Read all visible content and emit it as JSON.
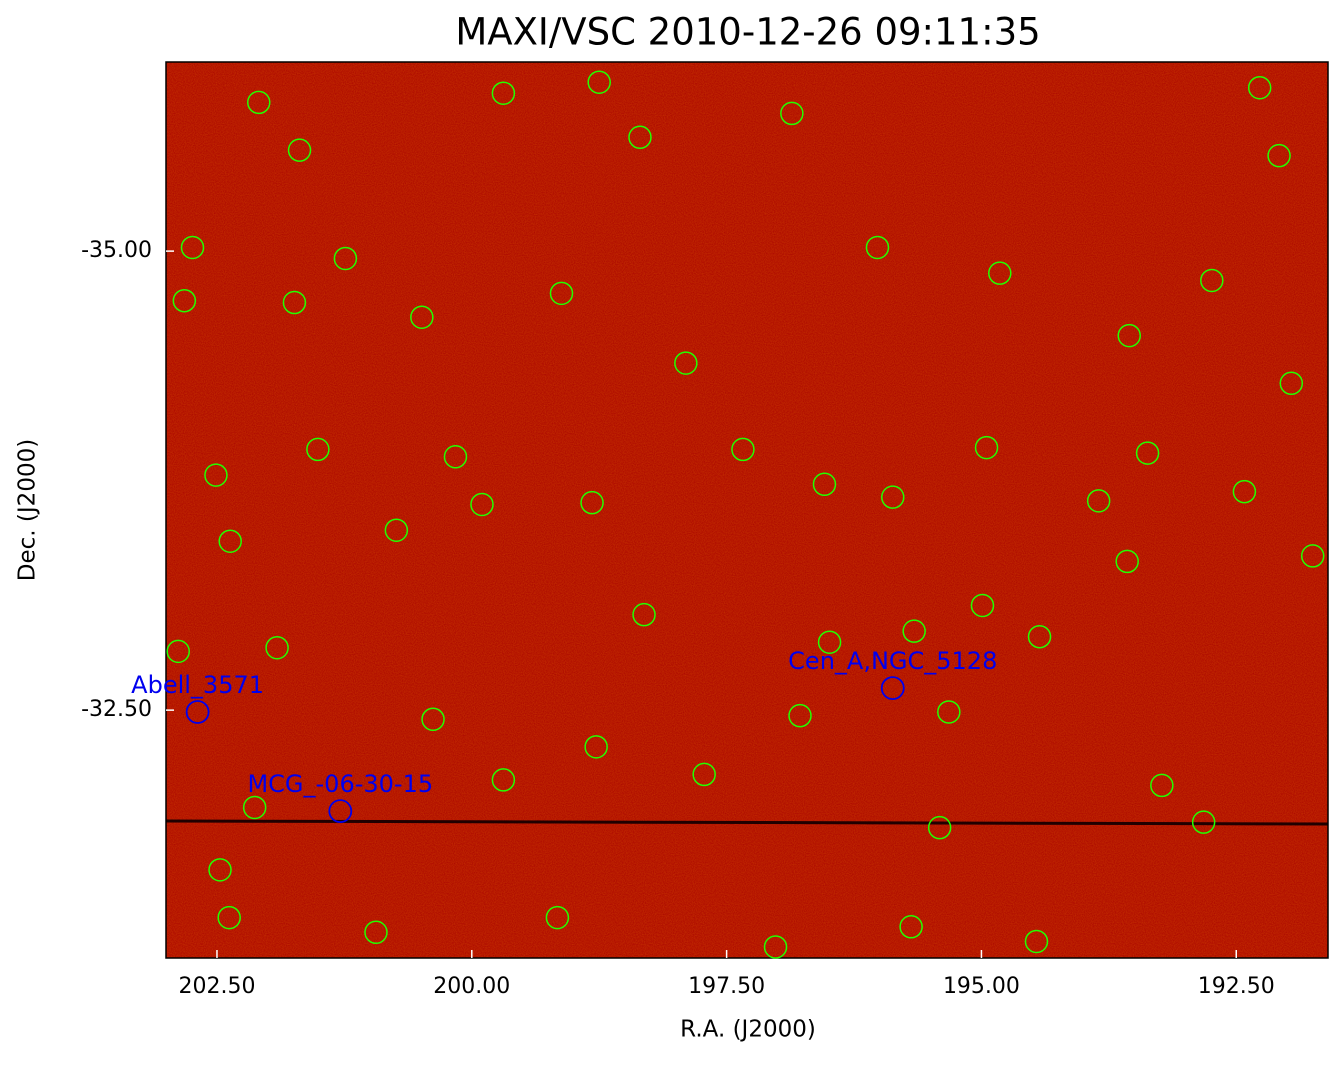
{
  "chart_data": {
    "type": "sky-image",
    "title": "MAXI/VSC 2010-12-26 09:11:35",
    "xlabel": "R.A. (J2000)",
    "ylabel": "Dec. (J2000)",
    "xlim": [
      203.0,
      191.6
    ],
    "ylim": [
      -31.15,
      -36.03
    ],
    "xticks": [
      {
        "value": 202.5,
        "label": "202.50"
      },
      {
        "value": 200.0,
        "label": "200.00"
      },
      {
        "value": 197.5,
        "label": "197.50"
      },
      {
        "value": 195.0,
        "label": "195.00"
      },
      {
        "value": 192.5,
        "label": "192.50"
      }
    ],
    "yticks": [
      {
        "value": -35.0,
        "label": "-35.00"
      },
      {
        "value": -32.5,
        "label": "-32.50"
      }
    ],
    "catalog_sources": {
      "color": "#22ff00",
      "ra": [
        202.09,
        201.69,
        202.74,
        202.82,
        201.74,
        201.24,
        200.49,
        199.69,
        198.75,
        198.35,
        199.12,
        197.9,
        196.86,
        196.02,
        194.82,
        193.55,
        192.08,
        192.27,
        192.74,
        191.96,
        193.37,
        193.57,
        194.43,
        193.23,
        192.82,
        194.46,
        195.69,
        197.02,
        199.16,
        200.94,
        202.38,
        202.47,
        202.13,
        202.88,
        201.91,
        200.38,
        199.69,
        198.78,
        197.72,
        196.78,
        195.32,
        195.41,
        194.99,
        195.66,
        196.49,
        198.31,
        198.82,
        199.9,
        200.74,
        202.37,
        202.51,
        201.51,
        200.16,
        197.34,
        196.54,
        195.87,
        194.95,
        193.85,
        192.42,
        191.75
      ],
      "dec": [
        -35.81,
        -35.55,
        -35.02,
        -34.73,
        -34.72,
        -34.96,
        -34.64,
        -35.86,
        -35.92,
        -35.62,
        -34.77,
        -34.39,
        -35.75,
        -35.02,
        -34.88,
        -34.54,
        -35.52,
        -35.89,
        -34.84,
        -34.28,
        -33.9,
        -33.31,
        -32.9,
        -32.09,
        -31.89,
        -31.24,
        -31.32,
        -31.21,
        -31.37,
        -31.29,
        -31.37,
        -31.63,
        -31.97,
        -32.82,
        -32.84,
        -32.45,
        -32.12,
        -32.3,
        -32.15,
        -32.47,
        -32.49,
        -31.86,
        -33.07,
        -32.93,
        -32.87,
        -33.02,
        -33.63,
        -33.62,
        -33.48,
        -33.42,
        -33.78,
        -33.92,
        -33.88,
        -33.92,
        -33.73,
        -33.66,
        -33.93,
        -33.64,
        -33.69,
        -33.34
      ]
    },
    "labeled_sources": {
      "color": "#0000ee",
      "names": [
        "Abell_3571",
        "Cen_A,NGC_5128",
        "MCG_-06-30-15"
      ],
      "ra": [
        202.69,
        195.87,
        201.29
      ],
      "dec": [
        -32.49,
        -32.62,
        -31.95
      ]
    }
  }
}
